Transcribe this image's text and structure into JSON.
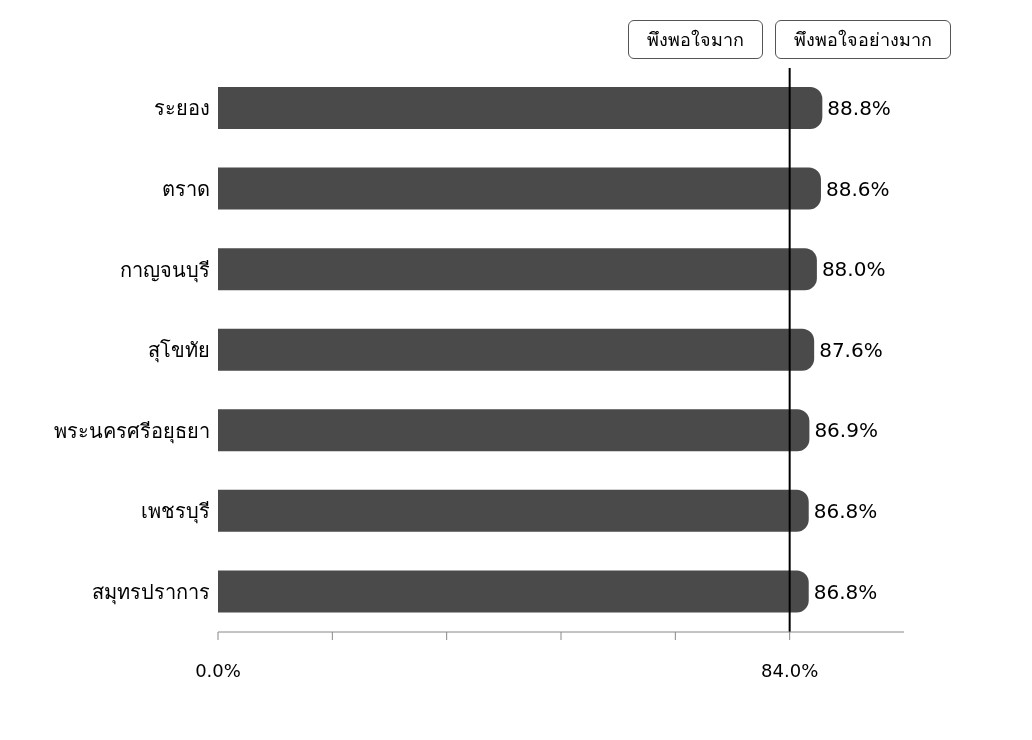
{
  "chart_data": {
    "type": "bar",
    "orientation": "horizontal",
    "categories": [
      "ระยอง",
      "ตราด",
      "กาญจนบุรี",
      "สุโขทัย",
      "พระนครศรีอยุธยา",
      "เพชรบุรี",
      "สมุทรปราการ"
    ],
    "values": [
      88.8,
      88.6,
      88.0,
      87.6,
      86.9,
      86.8,
      86.8
    ],
    "value_labels": [
      "88.8%",
      "88.6%",
      "88.0%",
      "87.6%",
      "86.9%",
      "86.8%",
      "86.8%"
    ],
    "color": "#4a4a4a",
    "xlim": [
      0,
      100.8
    ],
    "xticks": [
      {
        "value": 0,
        "label": "0.0%"
      },
      {
        "value": 16.8,
        "label": null
      },
      {
        "value": 33.6,
        "label": null
      },
      {
        "value": 50.4,
        "label": null
      },
      {
        "value": 67.2,
        "label": null
      },
      {
        "value": 84,
        "label": "84.0%"
      }
    ],
    "ref_lines": [
      {
        "axis": "x",
        "value": 84,
        "label": null,
        "color": "#000000"
      }
    ],
    "annotations": [
      "พึงพอใจมาก",
      "พึงพอใจอย่างมาก"
    ],
    "grid": false,
    "legend": false
  }
}
